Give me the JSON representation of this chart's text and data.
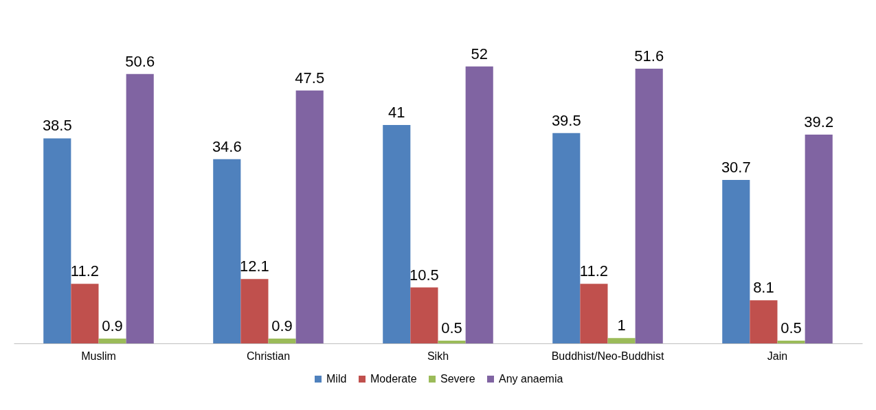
{
  "chart_data": {
    "type": "bar",
    "categories": [
      "Muslim",
      "Christian",
      "Sikh",
      "Buddhist/Neo-Buddhist",
      "Jain"
    ],
    "series": [
      {
        "name": "Mild",
        "color": "#4f81bd",
        "values": [
          38.5,
          34.6,
          41,
          39.5,
          30.7
        ]
      },
      {
        "name": "Moderate",
        "color": "#c0504d",
        "values": [
          11.2,
          12.1,
          10.5,
          11.2,
          8.1
        ]
      },
      {
        "name": "Severe",
        "color": "#9bbb59",
        "values": [
          0.9,
          0.9,
          0.5,
          1,
          0.5
        ]
      },
      {
        "name": "Any anaemia",
        "color": "#8064a2",
        "values": [
          50.6,
          47.5,
          52,
          51.6,
          39.2
        ]
      }
    ],
    "data_labels": true,
    "legend": "bottom"
  }
}
